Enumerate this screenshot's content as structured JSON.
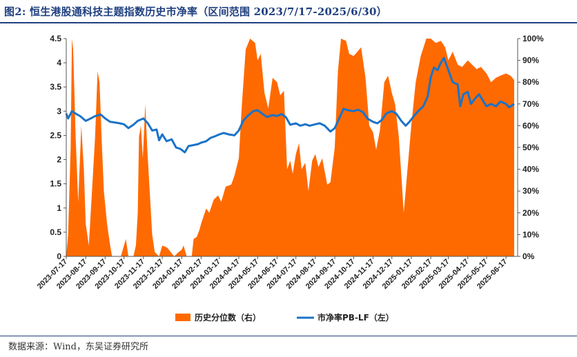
{
  "title": "图2:  恒生港股通科技主题指数历史市净率（区间范围 2023/7/17-2025/6/30）",
  "source": "数据来源：Wind，东吴证券研究所",
  "colors": {
    "area": "#ff6a00",
    "line": "#1a73c8",
    "title": "#1f3f7f"
  },
  "chart_data": {
    "type": "line",
    "secondary_type": "area",
    "y_left": {
      "min": 0,
      "max": 4.5,
      "ticks": [
        "0",
        "0.5",
        "1",
        "1.5",
        "2",
        "2.5",
        "3",
        "3.5",
        "4",
        "4.5"
      ]
    },
    "y_right": {
      "min": 0,
      "max": 1.0,
      "ticks": [
        "0%",
        "10%",
        "20%",
        "30%",
        "40%",
        "50%",
        "60%",
        "70%",
        "80%",
        "90%",
        "100%"
      ]
    },
    "x_tick_labels": [
      "2023-07-17",
      "2023-08-17",
      "2023-09-17",
      "2023-10-17",
      "2023-11-17",
      "2023-12-17",
      "2024-01-17",
      "2024-02-17",
      "2024-03-17",
      "2024-04-17",
      "2024-05-17",
      "2024-06-17",
      "2024-07-17",
      "2024-08-17",
      "2024-09-17",
      "2024-10-17",
      "2024-11-17",
      "2024-12-17",
      "2025-01-17",
      "2025-02-17",
      "2025-03-17",
      "2025-04-17",
      "2025-05-17",
      "2025-06-17"
    ],
    "x_range": [
      "2023-07-17",
      "2025-06-30"
    ],
    "series": [
      {
        "name": "历史分位数（右）",
        "axis": "right",
        "type": "area",
        "points": [
          [
            "2023-07-17",
            0.0
          ],
          [
            "2023-07-20",
            0.1
          ],
          [
            "2023-07-24",
            0.5
          ],
          [
            "2023-07-26",
            1.0
          ],
          [
            "2023-07-28",
            0.95
          ],
          [
            "2023-08-01",
            0.55
          ],
          [
            "2023-08-05",
            0.25
          ],
          [
            "2023-08-10",
            0.6
          ],
          [
            "2023-08-14",
            0.4
          ],
          [
            "2023-08-17",
            0.15
          ],
          [
            "2023-08-22",
            0.05
          ],
          [
            "2023-08-28",
            0.35
          ],
          [
            "2023-09-01",
            0.55
          ],
          [
            "2023-09-05",
            0.85
          ],
          [
            "2023-09-08",
            0.8
          ],
          [
            "2023-09-12",
            0.5
          ],
          [
            "2023-09-15",
            0.3
          ],
          [
            "2023-09-20",
            0.15
          ],
          [
            "2023-09-25",
            0.05
          ],
          [
            "2023-09-28",
            0.0
          ],
          [
            "2023-10-05",
            0.0
          ],
          [
            "2023-10-12",
            0.0
          ],
          [
            "2023-10-17",
            0.05
          ],
          [
            "2023-10-20",
            0.08
          ],
          [
            "2023-10-24",
            0.0
          ],
          [
            "2023-11-01",
            0.0
          ],
          [
            "2023-11-05",
            0.05
          ],
          [
            "2023-11-08",
            0.2
          ],
          [
            "2023-11-10",
            0.55
          ],
          [
            "2023-11-13",
            0.6
          ],
          [
            "2023-11-16",
            0.45
          ],
          [
            "2023-11-20",
            0.7
          ],
          [
            "2023-11-23",
            0.5
          ],
          [
            "2023-11-27",
            0.3
          ],
          [
            "2023-12-01",
            0.1
          ],
          [
            "2023-12-05",
            0.02
          ],
          [
            "2023-12-12",
            0.0
          ],
          [
            "2023-12-17",
            0.05
          ],
          [
            "2023-12-25",
            0.04
          ],
          [
            "2024-01-05",
            0.0
          ],
          [
            "2024-01-12",
            0.02
          ],
          [
            "2024-01-17",
            0.03
          ],
          [
            "2024-01-20",
            0.05
          ],
          [
            "2024-01-25",
            0.0
          ],
          [
            "2024-02-02",
            0.0
          ],
          [
            "2024-02-05",
            0.08
          ],
          [
            "2024-02-10",
            0.09
          ],
          [
            "2024-02-14",
            0.12
          ],
          [
            "2024-02-17",
            0.15
          ],
          [
            "2024-02-25",
            0.22
          ],
          [
            "2024-03-01",
            0.2
          ],
          [
            "2024-03-08",
            0.26
          ],
          [
            "2024-03-15",
            0.28
          ],
          [
            "2024-03-20",
            0.25
          ],
          [
            "2024-03-27",
            0.32
          ],
          [
            "2024-04-05",
            0.33
          ],
          [
            "2024-04-10",
            0.37
          ],
          [
            "2024-04-17",
            0.45
          ],
          [
            "2024-04-22",
            0.7
          ],
          [
            "2024-04-28",
            0.95
          ],
          [
            "2024-05-05",
            1.0
          ],
          [
            "2024-05-13",
            0.98
          ],
          [
            "2024-05-17",
            0.9
          ],
          [
            "2024-05-22",
            0.93
          ],
          [
            "2024-05-28",
            0.75
          ],
          [
            "2024-06-03",
            0.68
          ],
          [
            "2024-06-10",
            0.82
          ],
          [
            "2024-06-17",
            0.8
          ],
          [
            "2024-06-22",
            0.74
          ],
          [
            "2024-06-28",
            0.76
          ],
          [
            "2024-07-03",
            0.4
          ],
          [
            "2024-07-08",
            0.44
          ],
          [
            "2024-07-12",
            0.38
          ],
          [
            "2024-07-17",
            0.47
          ],
          [
            "2024-07-22",
            0.52
          ],
          [
            "2024-07-26",
            0.4
          ],
          [
            "2024-08-01",
            0.43
          ],
          [
            "2024-08-06",
            0.3
          ],
          [
            "2024-08-12",
            0.44
          ],
          [
            "2024-08-17",
            0.47
          ],
          [
            "2024-08-22",
            0.41
          ],
          [
            "2024-08-28",
            0.45
          ],
          [
            "2024-09-05",
            0.33
          ],
          [
            "2024-09-10",
            0.34
          ],
          [
            "2024-09-17",
            0.5
          ],
          [
            "2024-09-22",
            0.85
          ],
          [
            "2024-09-27",
            1.0
          ],
          [
            "2024-10-05",
            0.99
          ],
          [
            "2024-10-10",
            0.93
          ],
          [
            "2024-10-17",
            0.92
          ],
          [
            "2024-10-23",
            0.94
          ],
          [
            "2024-10-29",
            0.96
          ],
          [
            "2024-11-05",
            0.82
          ],
          [
            "2024-11-11",
            0.6
          ],
          [
            "2024-11-17",
            0.57
          ],
          [
            "2024-11-22",
            0.49
          ],
          [
            "2024-11-28",
            0.58
          ],
          [
            "2024-12-05",
            0.8
          ],
          [
            "2024-12-11",
            0.83
          ],
          [
            "2024-12-17",
            0.75
          ],
          [
            "2024-12-22",
            0.7
          ],
          [
            "2024-12-28",
            0.55
          ],
          [
            "2025-01-05",
            0.2
          ],
          [
            "2025-01-10",
            0.37
          ],
          [
            "2025-01-17",
            0.6
          ],
          [
            "2025-01-24",
            0.8
          ],
          [
            "2025-02-01",
            0.92
          ],
          [
            "2025-02-10",
            1.0
          ],
          [
            "2025-02-17",
            1.0
          ],
          [
            "2025-02-25",
            0.98
          ],
          [
            "2025-03-05",
            0.99
          ],
          [
            "2025-03-12",
            0.96
          ],
          [
            "2025-03-17",
            0.9
          ],
          [
            "2025-03-24",
            0.94
          ],
          [
            "2025-04-01",
            0.88
          ],
          [
            "2025-04-08",
            0.87
          ],
          [
            "2025-04-17",
            0.9
          ],
          [
            "2025-04-24",
            0.88
          ],
          [
            "2025-05-01",
            0.86
          ],
          [
            "2025-05-08",
            0.87
          ],
          [
            "2025-05-17",
            0.84
          ],
          [
            "2025-05-24",
            0.8
          ],
          [
            "2025-06-01",
            0.82
          ],
          [
            "2025-06-08",
            0.83
          ],
          [
            "2025-06-17",
            0.84
          ],
          [
            "2025-06-24",
            0.83
          ],
          [
            "2025-06-30",
            0.81
          ]
        ]
      },
      {
        "name": "市净率PB-LF（左）",
        "axis": "left",
        "type": "line",
        "points": [
          [
            "2023-07-17",
            2.95
          ],
          [
            "2023-07-20",
            2.85
          ],
          [
            "2023-07-26",
            3.0
          ],
          [
            "2023-08-01",
            2.95
          ],
          [
            "2023-08-08",
            2.9
          ],
          [
            "2023-08-17",
            2.8
          ],
          [
            "2023-08-25",
            2.85
          ],
          [
            "2023-09-01",
            2.9
          ],
          [
            "2023-09-10",
            2.93
          ],
          [
            "2023-09-17",
            2.85
          ],
          [
            "2023-09-25",
            2.78
          ],
          [
            "2023-10-01",
            2.77
          ],
          [
            "2023-10-10",
            2.75
          ],
          [
            "2023-10-17",
            2.73
          ],
          [
            "2023-10-24",
            2.65
          ],
          [
            "2023-11-01",
            2.72
          ],
          [
            "2023-11-08",
            2.8
          ],
          [
            "2023-11-17",
            2.85
          ],
          [
            "2023-11-24",
            2.75
          ],
          [
            "2023-12-01",
            2.6
          ],
          [
            "2023-12-08",
            2.62
          ],
          [
            "2023-12-12",
            2.4
          ],
          [
            "2023-12-17",
            2.52
          ],
          [
            "2023-12-24",
            2.38
          ],
          [
            "2024-01-01",
            2.42
          ],
          [
            "2024-01-08",
            2.25
          ],
          [
            "2024-01-15",
            2.22
          ],
          [
            "2024-01-22",
            2.15
          ],
          [
            "2024-01-28",
            2.28
          ],
          [
            "2024-02-05",
            2.3
          ],
          [
            "2024-02-12",
            2.32
          ],
          [
            "2024-02-17",
            2.35
          ],
          [
            "2024-02-25",
            2.38
          ],
          [
            "2024-03-03",
            2.45
          ],
          [
            "2024-03-10",
            2.48
          ],
          [
            "2024-03-17",
            2.52
          ],
          [
            "2024-03-24",
            2.55
          ],
          [
            "2024-04-01",
            2.52
          ],
          [
            "2024-04-10",
            2.5
          ],
          [
            "2024-04-17",
            2.6
          ],
          [
            "2024-04-24",
            2.8
          ],
          [
            "2024-05-01",
            2.9
          ],
          [
            "2024-05-10",
            3.0
          ],
          [
            "2024-05-17",
            3.02
          ],
          [
            "2024-05-24",
            2.95
          ],
          [
            "2024-06-01",
            2.88
          ],
          [
            "2024-06-10",
            2.92
          ],
          [
            "2024-06-17",
            2.9
          ],
          [
            "2024-06-24",
            2.94
          ],
          [
            "2024-07-01",
            2.88
          ],
          [
            "2024-07-08",
            2.72
          ],
          [
            "2024-07-17",
            2.75
          ],
          [
            "2024-07-24",
            2.7
          ],
          [
            "2024-08-01",
            2.73
          ],
          [
            "2024-08-08",
            2.7
          ],
          [
            "2024-08-17",
            2.73
          ],
          [
            "2024-08-24",
            2.75
          ],
          [
            "2024-09-01",
            2.7
          ],
          [
            "2024-09-10",
            2.58
          ],
          [
            "2024-09-17",
            2.65
          ],
          [
            "2024-09-24",
            2.85
          ],
          [
            "2024-10-01",
            3.05
          ],
          [
            "2024-10-08",
            3.02
          ],
          [
            "2024-10-17",
            3.0
          ],
          [
            "2024-10-24",
            3.03
          ],
          [
            "2024-11-01",
            2.98
          ],
          [
            "2024-11-08",
            2.85
          ],
          [
            "2024-11-17",
            2.78
          ],
          [
            "2024-11-24",
            2.75
          ],
          [
            "2024-12-01",
            2.82
          ],
          [
            "2024-12-08",
            2.95
          ],
          [
            "2024-12-17",
            3.0
          ],
          [
            "2024-12-24",
            2.95
          ],
          [
            "2025-01-01",
            2.8
          ],
          [
            "2025-01-08",
            2.7
          ],
          [
            "2025-01-14",
            2.78
          ],
          [
            "2025-01-21",
            2.9
          ],
          [
            "2025-01-28",
            3.0
          ],
          [
            "2025-02-05",
            3.1
          ],
          [
            "2025-02-12",
            3.3
          ],
          [
            "2025-02-17",
            3.7
          ],
          [
            "2025-02-22",
            3.9
          ],
          [
            "2025-02-28",
            3.85
          ],
          [
            "2025-03-05",
            4.0
          ],
          [
            "2025-03-10",
            4.1
          ],
          [
            "2025-03-17",
            3.85
          ],
          [
            "2025-03-24",
            3.6
          ],
          [
            "2025-04-01",
            3.55
          ],
          [
            "2025-04-05",
            3.1
          ],
          [
            "2025-04-10",
            3.35
          ],
          [
            "2025-04-17",
            3.4
          ],
          [
            "2025-04-22",
            3.15
          ],
          [
            "2025-04-28",
            3.25
          ],
          [
            "2025-05-05",
            3.35
          ],
          [
            "2025-05-12",
            3.2
          ],
          [
            "2025-05-17",
            3.1
          ],
          [
            "2025-05-24",
            3.15
          ],
          [
            "2025-06-01",
            3.1
          ],
          [
            "2025-06-08",
            3.2
          ],
          [
            "2025-06-17",
            3.15
          ],
          [
            "2025-06-22",
            3.08
          ],
          [
            "2025-06-30",
            3.15
          ]
        ]
      }
    ],
    "legend": {
      "placement": "bottom"
    }
  }
}
